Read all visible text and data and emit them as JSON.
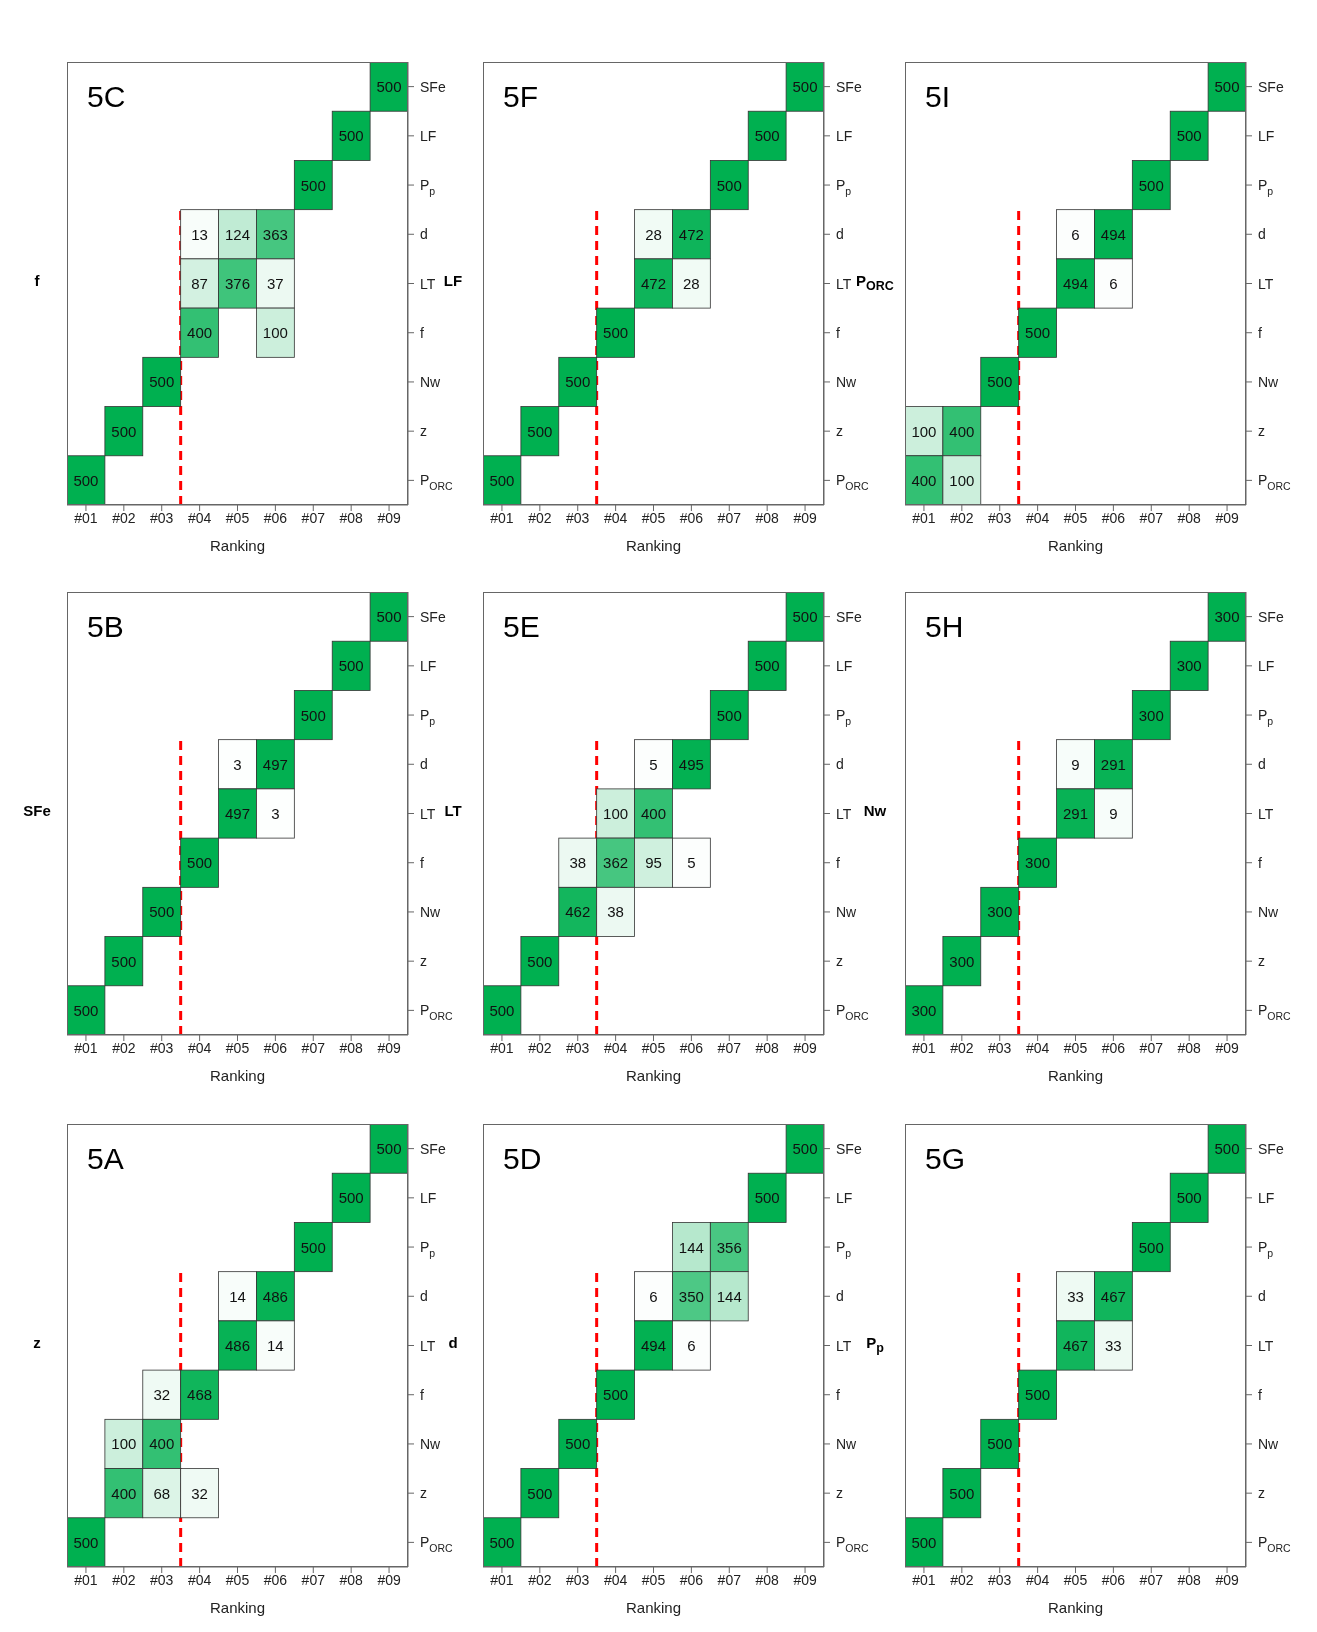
{
  "chart_data": [
    {
      "type": "heatmap",
      "title": "z",
      "xlabel": "Ranking",
      "color": "#00b050",
      "data_labels": true,
      "annotations": [
        "5A"
      ],
      "x": [
        1,
        2,
        3,
        4,
        5,
        6,
        7,
        8,
        9
      ],
      "xlim": [
        0.5,
        9.5
      ],
      "xticks": [
        {
          "value": 1,
          "label": "#01"
        },
        {
          "value": 2,
          "label": "#02"
        },
        {
          "value": 3,
          "label": "#03"
        },
        {
          "value": 4,
          "label": "#04"
        },
        {
          "value": 5,
          "label": "#05"
        },
        {
          "value": 6,
          "label": "#06"
        },
        {
          "value": 7,
          "label": "#07"
        },
        {
          "value": 8,
          "label": "#08"
        },
        {
          "value": 9,
          "label": "#09"
        }
      ],
      "y_categories": [
        "SFe",
        "LF",
        "P$_{p}$",
        "d",
        "LT",
        "f",
        "Nw",
        "z",
        "P$_{ORC}$"
      ],
      "ref_lines": [
        {
          "axis": "x",
          "value": 3.5,
          "color": "#ff0000",
          "line_style": "dashed"
        }
      ],
      "cells": [
        [
          null,
          null,
          null,
          null,
          null,
          null,
          null,
          null,
          500
        ],
        [
          null,
          null,
          null,
          null,
          null,
          null,
          null,
          500,
          null
        ],
        [
          null,
          null,
          null,
          null,
          null,
          null,
          500,
          null,
          null
        ],
        [
          null,
          null,
          null,
          null,
          14,
          486,
          null,
          null,
          null
        ],
        [
          null,
          null,
          null,
          null,
          486,
          14,
          null,
          null,
          null
        ],
        [
          null,
          null,
          32,
          468,
          null,
          null,
          null,
          null,
          null
        ],
        [
          null,
          100,
          400,
          null,
          null,
          null,
          null,
          null,
          null
        ],
        [
          null,
          400,
          68,
          32,
          null,
          null,
          null,
          null,
          null
        ],
        [
          500,
          null,
          null,
          null,
          null,
          null,
          null,
          null,
          null
        ]
      ]
    },
    {
      "type": "heatmap",
      "title": "SFe",
      "xlabel": "Ranking",
      "color": "#00b050",
      "data_labels": true,
      "annotations": [
        "5B"
      ],
      "x": [
        1,
        2,
        3,
        4,
        5,
        6,
        7,
        8,
        9
      ],
      "xlim": [
        0.5,
        9.5
      ],
      "xticks": [
        {
          "value": 1,
          "label": "#01"
        },
        {
          "value": 2,
          "label": "#02"
        },
        {
          "value": 3,
          "label": "#03"
        },
        {
          "value": 4,
          "label": "#04"
        },
        {
          "value": 5,
          "label": "#05"
        },
        {
          "value": 6,
          "label": "#06"
        },
        {
          "value": 7,
          "label": "#07"
        },
        {
          "value": 8,
          "label": "#08"
        },
        {
          "value": 9,
          "label": "#09"
        }
      ],
      "y_categories": [
        "SFe",
        "LF",
        "P$_{p}$",
        "d",
        "LT",
        "f",
        "Nw",
        "z",
        "P$_{ORC}$"
      ],
      "ref_lines": [
        {
          "axis": "x",
          "value": 3.5,
          "color": "#ff0000",
          "line_style": "dashed"
        }
      ],
      "cells": [
        [
          null,
          null,
          null,
          null,
          null,
          null,
          null,
          null,
          500
        ],
        [
          null,
          null,
          null,
          null,
          null,
          null,
          null,
          500,
          null
        ],
        [
          null,
          null,
          null,
          null,
          null,
          null,
          500,
          null,
          null
        ],
        [
          null,
          null,
          null,
          null,
          3,
          497,
          null,
          null,
          null
        ],
        [
          null,
          null,
          null,
          null,
          497,
          3,
          null,
          null,
          null
        ],
        [
          null,
          null,
          null,
          500,
          null,
          null,
          null,
          null,
          null
        ],
        [
          null,
          null,
          500,
          null,
          null,
          null,
          null,
          null,
          null
        ],
        [
          null,
          500,
          null,
          null,
          null,
          null,
          null,
          null,
          null
        ],
        [
          500,
          null,
          null,
          null,
          null,
          null,
          null,
          null,
          null
        ]
      ]
    },
    {
      "type": "heatmap",
      "title": "f",
      "xlabel": "Ranking",
      "color": "#00b050",
      "data_labels": true,
      "annotations": [
        "5C"
      ],
      "x": [
        1,
        2,
        3,
        4,
        5,
        6,
        7,
        8,
        9
      ],
      "xlim": [
        0.5,
        9.5
      ],
      "xticks": [
        {
          "value": 1,
          "label": "#01"
        },
        {
          "value": 2,
          "label": "#02"
        },
        {
          "value": 3,
          "label": "#03"
        },
        {
          "value": 4,
          "label": "#04"
        },
        {
          "value": 5,
          "label": "#05"
        },
        {
          "value": 6,
          "label": "#06"
        },
        {
          "value": 7,
          "label": "#07"
        },
        {
          "value": 8,
          "label": "#08"
        },
        {
          "value": 9,
          "label": "#09"
        }
      ],
      "y_categories": [
        "SFe",
        "LF",
        "P$_{p}$",
        "d",
        "LT",
        "f",
        "Nw",
        "z",
        "P$_{ORC}$"
      ],
      "ref_lines": [
        {
          "axis": "x",
          "value": 3.5,
          "color": "#ff0000",
          "line_style": "dashed"
        }
      ],
      "cells": [
        [
          null,
          null,
          null,
          null,
          null,
          null,
          null,
          null,
          500
        ],
        [
          null,
          null,
          null,
          null,
          null,
          null,
          null,
          500,
          null
        ],
        [
          null,
          null,
          null,
          null,
          null,
          null,
          500,
          null,
          null
        ],
        [
          null,
          null,
          null,
          13,
          124,
          363,
          null,
          null,
          null
        ],
        [
          null,
          null,
          null,
          87,
          376,
          37,
          null,
          null,
          null
        ],
        [
          null,
          null,
          null,
          400,
          null,
          100,
          null,
          null,
          null
        ],
        [
          null,
          null,
          500,
          null,
          null,
          null,
          null,
          null,
          null
        ],
        [
          null,
          500,
          null,
          null,
          null,
          null,
          null,
          null,
          null
        ],
        [
          500,
          null,
          null,
          null,
          null,
          null,
          null,
          null,
          null
        ]
      ]
    },
    {
      "type": "heatmap",
      "title": "d",
      "xlabel": "Ranking",
      "color": "#00b050",
      "data_labels": true,
      "annotations": [
        "5D"
      ],
      "x": [
        1,
        2,
        3,
        4,
        5,
        6,
        7,
        8,
        9
      ],
      "xlim": [
        0.5,
        9.5
      ],
      "xticks": [
        {
          "value": 1,
          "label": "#01"
        },
        {
          "value": 2,
          "label": "#02"
        },
        {
          "value": 3,
          "label": "#03"
        },
        {
          "value": 4,
          "label": "#04"
        },
        {
          "value": 5,
          "label": "#05"
        },
        {
          "value": 6,
          "label": "#06"
        },
        {
          "value": 7,
          "label": "#07"
        },
        {
          "value": 8,
          "label": "#08"
        },
        {
          "value": 9,
          "label": "#09"
        }
      ],
      "y_categories": [
        "SFe",
        "LF",
        "P$_{p}$",
        "d",
        "LT",
        "f",
        "Nw",
        "z",
        "P$_{ORC}$"
      ],
      "ref_lines": [
        {
          "axis": "x",
          "value": 3.5,
          "color": "#ff0000",
          "line_style": "dashed"
        }
      ],
      "cells": [
        [
          null,
          null,
          null,
          null,
          null,
          null,
          null,
          null,
          500
        ],
        [
          null,
          null,
          null,
          null,
          null,
          null,
          null,
          500,
          null
        ],
        [
          null,
          null,
          null,
          null,
          null,
          144,
          356,
          null,
          null
        ],
        [
          null,
          null,
          null,
          null,
          6,
          350,
          144,
          null,
          null
        ],
        [
          null,
          null,
          null,
          null,
          494,
          6,
          null,
          null,
          null
        ],
        [
          null,
          null,
          null,
          500,
          null,
          null,
          null,
          null,
          null
        ],
        [
          null,
          null,
          500,
          null,
          null,
          null,
          null,
          null,
          null
        ],
        [
          null,
          500,
          null,
          null,
          null,
          null,
          null,
          null,
          null
        ],
        [
          500,
          null,
          null,
          null,
          null,
          null,
          null,
          null,
          null
        ]
      ]
    },
    {
      "type": "heatmap",
      "title": "LT",
      "xlabel": "Ranking",
      "color": "#00b050",
      "data_labels": true,
      "annotations": [
        "5E"
      ],
      "x": [
        1,
        2,
        3,
        4,
        5,
        6,
        7,
        8,
        9
      ],
      "xlim": [
        0.5,
        9.5
      ],
      "xticks": [
        {
          "value": 1,
          "label": "#01"
        },
        {
          "value": 2,
          "label": "#02"
        },
        {
          "value": 3,
          "label": "#03"
        },
        {
          "value": 4,
          "label": "#04"
        },
        {
          "value": 5,
          "label": "#05"
        },
        {
          "value": 6,
          "label": "#06"
        },
        {
          "value": 7,
          "label": "#07"
        },
        {
          "value": 8,
          "label": "#08"
        },
        {
          "value": 9,
          "label": "#09"
        }
      ],
      "y_categories": [
        "SFe",
        "LF",
        "P$_{p}$",
        "d",
        "LT",
        "f",
        "Nw",
        "z",
        "P$_{ORC}$"
      ],
      "ref_lines": [
        {
          "axis": "x",
          "value": 3.5,
          "color": "#ff0000",
          "line_style": "dashed"
        }
      ],
      "cells": [
        [
          null,
          null,
          null,
          null,
          null,
          null,
          null,
          null,
          500
        ],
        [
          null,
          null,
          null,
          null,
          null,
          null,
          null,
          500,
          null
        ],
        [
          null,
          null,
          null,
          null,
          null,
          null,
          500,
          null,
          null
        ],
        [
          null,
          null,
          null,
          null,
          5,
          495,
          null,
          null,
          null
        ],
        [
          null,
          null,
          null,
          100,
          400,
          null,
          null,
          null,
          null
        ],
        [
          null,
          null,
          38,
          362,
          95,
          5,
          null,
          null,
          null
        ],
        [
          null,
          null,
          462,
          38,
          null,
          null,
          null,
          null,
          null
        ],
        [
          null,
          500,
          null,
          null,
          null,
          null,
          null,
          null,
          null
        ],
        [
          500,
          null,
          null,
          null,
          null,
          null,
          null,
          null,
          null
        ]
      ]
    },
    {
      "type": "heatmap",
      "title": "LF",
      "xlabel": "Ranking",
      "color": "#00b050",
      "data_labels": true,
      "annotations": [
        "5F"
      ],
      "x": [
        1,
        2,
        3,
        4,
        5,
        6,
        7,
        8,
        9
      ],
      "xlim": [
        0.5,
        9.5
      ],
      "xticks": [
        {
          "value": 1,
          "label": "#01"
        },
        {
          "value": 2,
          "label": "#02"
        },
        {
          "value": 3,
          "label": "#03"
        },
        {
          "value": 4,
          "label": "#04"
        },
        {
          "value": 5,
          "label": "#05"
        },
        {
          "value": 6,
          "label": "#06"
        },
        {
          "value": 7,
          "label": "#07"
        },
        {
          "value": 8,
          "label": "#08"
        },
        {
          "value": 9,
          "label": "#09"
        }
      ],
      "y_categories": [
        "SFe",
        "LF",
        "P$_{p}$",
        "d",
        "LT",
        "f",
        "Nw",
        "z",
        "P$_{ORC}$"
      ],
      "ref_lines": [
        {
          "axis": "x",
          "value": 3.5,
          "color": "#ff0000",
          "line_style": "dashed"
        }
      ],
      "cells": [
        [
          null,
          null,
          null,
          null,
          null,
          null,
          null,
          null,
          500
        ],
        [
          null,
          null,
          null,
          null,
          null,
          null,
          null,
          500,
          null
        ],
        [
          null,
          null,
          null,
          null,
          null,
          null,
          500,
          null,
          null
        ],
        [
          null,
          null,
          null,
          null,
          28,
          472,
          null,
          null,
          null
        ],
        [
          null,
          null,
          null,
          null,
          472,
          28,
          null,
          null,
          null
        ],
        [
          null,
          null,
          null,
          500,
          null,
          null,
          null,
          null,
          null
        ],
        [
          null,
          null,
          500,
          null,
          null,
          null,
          null,
          null,
          null
        ],
        [
          null,
          500,
          null,
          null,
          null,
          null,
          null,
          null,
          null
        ],
        [
          500,
          null,
          null,
          null,
          null,
          null,
          null,
          null,
          null
        ]
      ]
    },
    {
      "type": "heatmap",
      "title": "P$_{p}$",
      "xlabel": "Ranking",
      "color": "#00b050",
      "data_labels": true,
      "annotations": [
        "5G"
      ],
      "x": [
        1,
        2,
        3,
        4,
        5,
        6,
        7,
        8,
        9
      ],
      "xlim": [
        0.5,
        9.5
      ],
      "xticks": [
        {
          "value": 1,
          "label": "#01"
        },
        {
          "value": 2,
          "label": "#02"
        },
        {
          "value": 3,
          "label": "#03"
        },
        {
          "value": 4,
          "label": "#04"
        },
        {
          "value": 5,
          "label": "#05"
        },
        {
          "value": 6,
          "label": "#06"
        },
        {
          "value": 7,
          "label": "#07"
        },
        {
          "value": 8,
          "label": "#08"
        },
        {
          "value": 9,
          "label": "#09"
        }
      ],
      "y_categories": [
        "SFe",
        "LF",
        "P$_{p}$",
        "d",
        "LT",
        "f",
        "Nw",
        "z",
        "P$_{ORC}$"
      ],
      "ref_lines": [
        {
          "axis": "x",
          "value": 3.5,
          "color": "#ff0000",
          "line_style": "dashed"
        }
      ],
      "cells": [
        [
          null,
          null,
          null,
          null,
          null,
          null,
          null,
          null,
          500
        ],
        [
          null,
          null,
          null,
          null,
          null,
          null,
          null,
          500,
          null
        ],
        [
          null,
          null,
          null,
          null,
          null,
          null,
          500,
          null,
          null
        ],
        [
          null,
          null,
          null,
          null,
          33,
          467,
          null,
          null,
          null
        ],
        [
          null,
          null,
          null,
          null,
          467,
          33,
          null,
          null,
          null
        ],
        [
          null,
          null,
          null,
          500,
          null,
          null,
          null,
          null,
          null
        ],
        [
          null,
          null,
          500,
          null,
          null,
          null,
          null,
          null,
          null
        ],
        [
          null,
          500,
          null,
          null,
          null,
          null,
          null,
          null,
          null
        ],
        [
          500,
          null,
          null,
          null,
          null,
          null,
          null,
          null,
          null
        ]
      ]
    },
    {
      "type": "heatmap",
      "title": "Nw",
      "xlabel": "Ranking",
      "color": "#00b050",
      "data_labels": true,
      "annotations": [
        "5H"
      ],
      "x": [
        1,
        2,
        3,
        4,
        5,
        6,
        7,
        8,
        9
      ],
      "xlim": [
        0.5,
        9.5
      ],
      "xticks": [
        {
          "value": 1,
          "label": "#01"
        },
        {
          "value": 2,
          "label": "#02"
        },
        {
          "value": 3,
          "label": "#03"
        },
        {
          "value": 4,
          "label": "#04"
        },
        {
          "value": 5,
          "label": "#05"
        },
        {
          "value": 6,
          "label": "#06"
        },
        {
          "value": 7,
          "label": "#07"
        },
        {
          "value": 8,
          "label": "#08"
        },
        {
          "value": 9,
          "label": "#09"
        }
      ],
      "y_categories": [
        "SFe",
        "LF",
        "P$_{p}$",
        "d",
        "LT",
        "f",
        "Nw",
        "z",
        "P$_{ORC}$"
      ],
      "ref_lines": [
        {
          "axis": "x",
          "value": 3.5,
          "color": "#ff0000",
          "line_style": "dashed"
        }
      ],
      "cells": [
        [
          null,
          null,
          null,
          null,
          null,
          null,
          null,
          null,
          300
        ],
        [
          null,
          null,
          null,
          null,
          null,
          null,
          null,
          300,
          null
        ],
        [
          null,
          null,
          null,
          null,
          null,
          null,
          300,
          null,
          null
        ],
        [
          null,
          null,
          null,
          null,
          9,
          291,
          null,
          null,
          null
        ],
        [
          null,
          null,
          null,
          null,
          291,
          9,
          null,
          null,
          null
        ],
        [
          null,
          null,
          null,
          300,
          null,
          null,
          null,
          null,
          null
        ],
        [
          null,
          null,
          300,
          null,
          null,
          null,
          null,
          null,
          null
        ],
        [
          null,
          300,
          null,
          null,
          null,
          null,
          null,
          null,
          null
        ],
        [
          300,
          null,
          null,
          null,
          null,
          null,
          null,
          null,
          null
        ]
      ]
    },
    {
      "type": "heatmap",
      "title": "P$_{ORC}$",
      "xlabel": "Ranking",
      "color": "#00b050",
      "data_labels": true,
      "annotations": [
        "5I"
      ],
      "x": [
        1,
        2,
        3,
        4,
        5,
        6,
        7,
        8,
        9
      ],
      "xlim": [
        0.5,
        9.5
      ],
      "xticks": [
        {
          "value": 1,
          "label": "#01"
        },
        {
          "value": 2,
          "label": "#02"
        },
        {
          "value": 3,
          "label": "#03"
        },
        {
          "value": 4,
          "label": "#04"
        },
        {
          "value": 5,
          "label": "#05"
        },
        {
          "value": 6,
          "label": "#06"
        },
        {
          "value": 7,
          "label": "#07"
        },
        {
          "value": 8,
          "label": "#08"
        },
        {
          "value": 9,
          "label": "#09"
        }
      ],
      "y_categories": [
        "SFe",
        "LF",
        "P$_{p}$",
        "d",
        "LT",
        "f",
        "Nw",
        "z",
        "P$_{ORC}$"
      ],
      "ref_lines": [
        {
          "axis": "x",
          "value": 3.5,
          "color": "#ff0000",
          "line_style": "dashed"
        }
      ],
      "cells": [
        [
          null,
          null,
          null,
          null,
          null,
          null,
          null,
          null,
          500
        ],
        [
          null,
          null,
          null,
          null,
          null,
          null,
          null,
          500,
          null
        ],
        [
          null,
          null,
          null,
          null,
          null,
          null,
          500,
          null,
          null
        ],
        [
          null,
          null,
          null,
          null,
          6,
          494,
          null,
          null,
          null
        ],
        [
          null,
          null,
          null,
          null,
          494,
          6,
          null,
          null,
          null
        ],
        [
          null,
          null,
          null,
          500,
          null,
          null,
          null,
          null,
          null
        ],
        [
          null,
          null,
          500,
          null,
          null,
          null,
          null,
          null,
          null
        ],
        [
          100,
          400,
          null,
          null,
          null,
          null,
          null,
          null,
          null
        ],
        [
          400,
          100,
          null,
          null,
          null,
          null,
          null,
          null,
          null
        ]
      ]
    }
  ]
}
